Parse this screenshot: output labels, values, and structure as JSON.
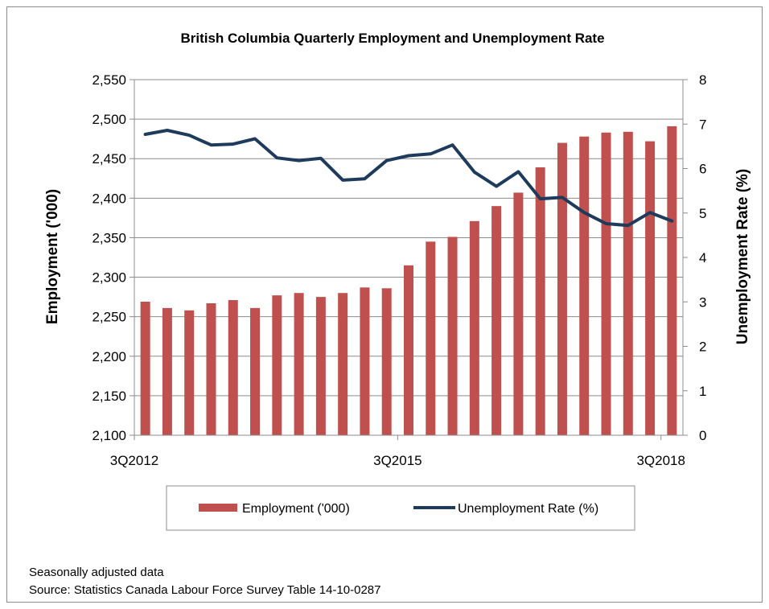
{
  "chart_data": {
    "type": "bar",
    "title": "British Columbia Quarterly Employment and Unemployment Rate",
    "ylabel": "Employment ('000)",
    "y2label": "Unemployment Rate (%)",
    "ylim": [
      2100,
      2550
    ],
    "y2lim": [
      0,
      8
    ],
    "yticks": [
      "2,100",
      "2,150",
      "2,200",
      "2,250",
      "2,300",
      "2,350",
      "2,400",
      "2,450",
      "2,500",
      "2,550"
    ],
    "y2ticks": [
      "0",
      "1",
      "2",
      "3",
      "4",
      "5",
      "6",
      "7",
      "8"
    ],
    "x_tick_labels": [
      {
        "index": 0,
        "label": "3Q2012"
      },
      {
        "index": 12,
        "label": "3Q2015"
      },
      {
        "index": 24,
        "label": "3Q2018"
      }
    ],
    "categories": [
      "3Q2012",
      "4Q2012",
      "1Q2013",
      "2Q2013",
      "3Q2013",
      "4Q2013",
      "1Q2014",
      "2Q2014",
      "3Q2014",
      "4Q2014",
      "1Q2015",
      "2Q2015",
      "3Q2015",
      "4Q2015",
      "1Q2016",
      "2Q2016",
      "3Q2016",
      "4Q2016",
      "1Q2017",
      "2Q2017",
      "3Q2017",
      "4Q2017",
      "1Q2018",
      "2Q2018",
      "3Q2018"
    ],
    "series": [
      {
        "name": "Employment ('000)",
        "type": "bar",
        "axis": "left",
        "color": "#c0504d",
        "values": [
          2269,
          2261,
          2258,
          2267,
          2271,
          2261,
          2277,
          2280,
          2275,
          2280,
          2287,
          2286,
          2315,
          2345,
          2351,
          2371,
          2390,
          2407,
          2439,
          2470,
          2478,
          2483,
          2484,
          2472,
          2491
        ]
      },
      {
        "name": "Unemployment Rate (%)",
        "type": "line",
        "axis": "right",
        "color": "#1f3b5c",
        "values": [
          6.77,
          6.86,
          6.75,
          6.53,
          6.55,
          6.67,
          6.24,
          6.18,
          6.23,
          5.74,
          5.77,
          6.18,
          6.29,
          6.33,
          6.53,
          5.92,
          5.6,
          5.93,
          5.32,
          5.35,
          5.01,
          4.76,
          4.72,
          5.01,
          4.82
        ]
      }
    ],
    "legend_position": "bottom",
    "grid": true
  },
  "footnotes": {
    "line1": "Seasonally adjusted data",
    "line2": "Source: Statistics Canada Labour Force Survey Table 14-10-0287"
  }
}
